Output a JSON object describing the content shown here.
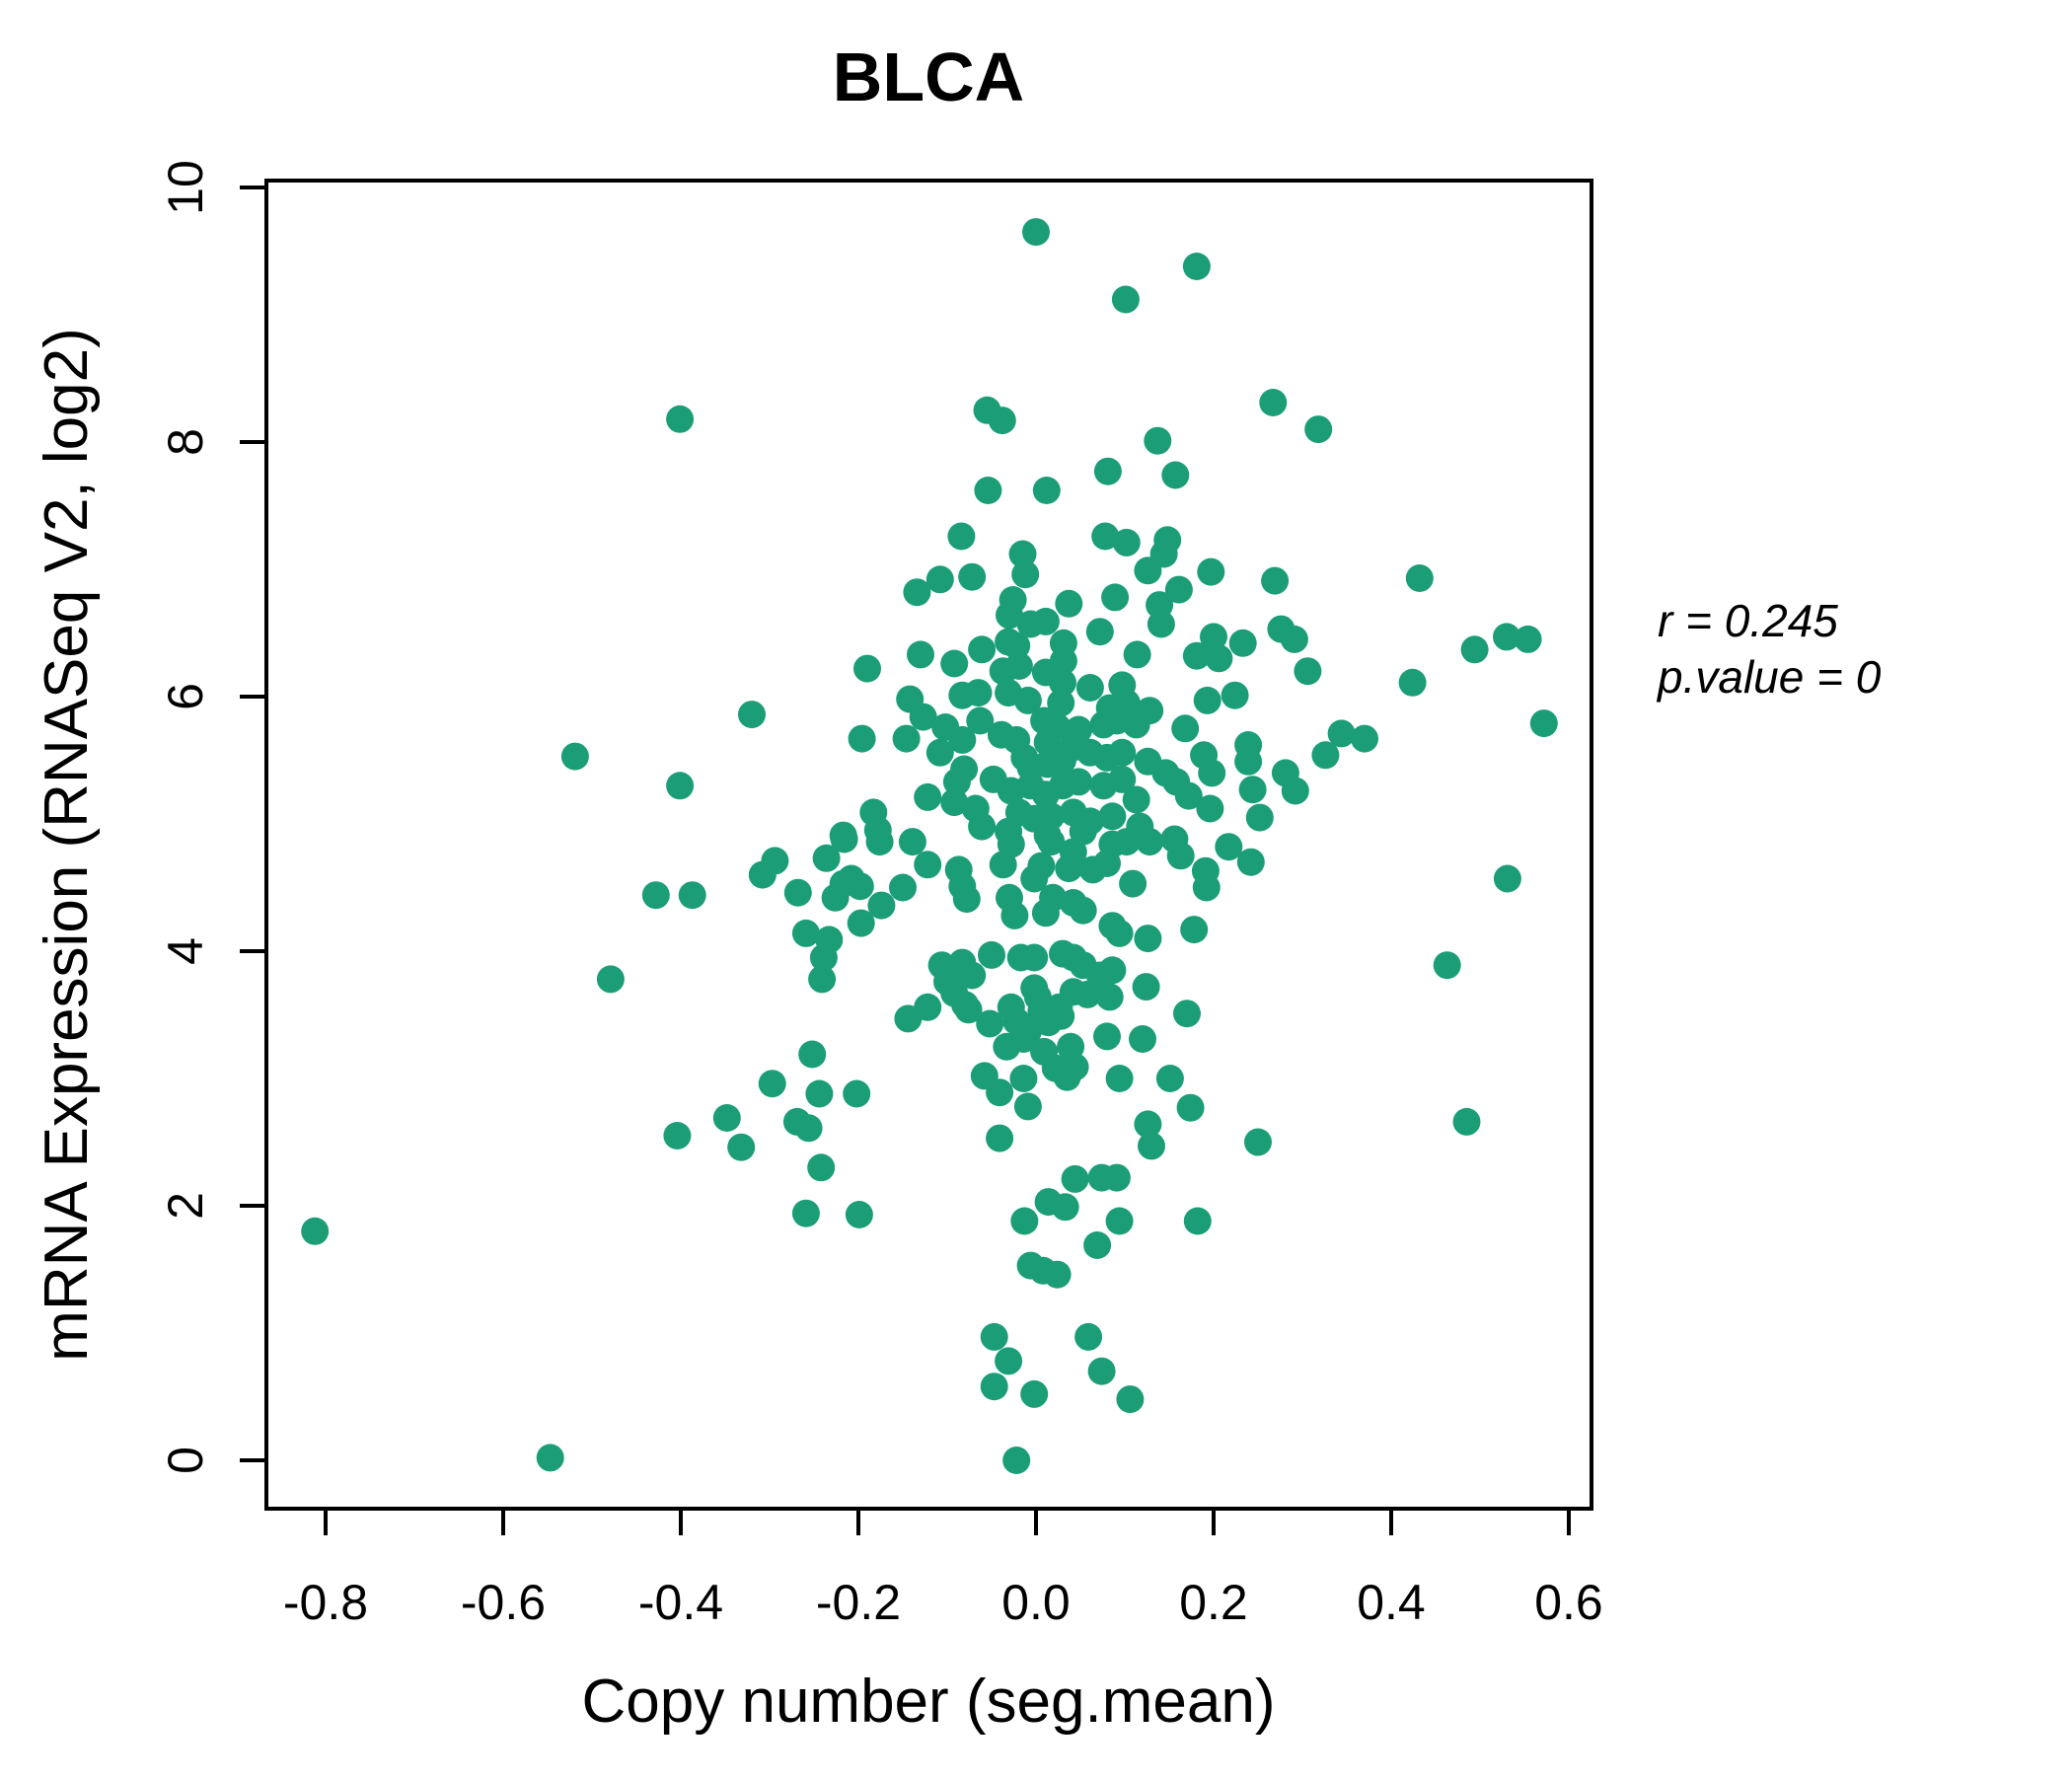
{
  "title": "BLCA",
  "title_color": "#1B9E77",
  "annotation": {
    "line1": "r = 0.245",
    "line2": "p.value = 0"
  },
  "chart_data": {
    "type": "scatter",
    "title": "BLCA",
    "xlabel": "Copy number (seg.mean)",
    "ylabel": "mRNA Expression (RNASeq V2, log2)",
    "xlim": [
      -0.87,
      0.63
    ],
    "ylim": [
      -0.38,
      10.05
    ],
    "x_tick_labels": [
      "-0.8",
      "-0.6",
      "-0.4",
      "-0.2",
      "0.0",
      "0.2",
      "0.4",
      "0.6"
    ],
    "y_tick_labels": [
      "0",
      "2",
      "4",
      "6",
      "8",
      "10"
    ],
    "grid": false,
    "legend": "none",
    "point_color": "#1B9E77",
    "correlation_r": 0.245,
    "p_value": 0,
    "points": [
      [
        -0.401,
        8.18
      ],
      [
        0.0,
        9.65
      ],
      [
        0.101,
        9.12
      ],
      [
        -0.055,
        8.25
      ],
      [
        -0.038,
        8.17
      ],
      [
        0.081,
        7.77
      ],
      [
        -0.054,
        7.62
      ],
      [
        0.012,
        7.62
      ],
      [
        -0.084,
        7.26
      ],
      [
        -0.015,
        7.12
      ],
      [
        0.078,
        7.26
      ],
      [
        0.102,
        7.21
      ],
      [
        -0.012,
        6.96
      ],
      [
        -0.108,
        6.92
      ],
      [
        -0.072,
        6.94
      ],
      [
        -0.134,
        6.82
      ],
      [
        -0.026,
        6.76
      ],
      [
        0.037,
        6.73
      ],
      [
        0.089,
        6.78
      ],
      [
        0.126,
        6.99
      ],
      [
        0.181,
        9.38
      ],
      [
        0.267,
        8.31
      ],
      [
        0.318,
        8.1
      ],
      [
        0.137,
        8.01
      ],
      [
        0.157,
        7.74
      ],
      [
        0.148,
        7.23
      ],
      [
        0.144,
        7.12
      ],
      [
        0.197,
        6.98
      ],
      [
        0.269,
        6.91
      ],
      [
        0.432,
        6.93
      ],
      [
        0.161,
        6.84
      ],
      [
        0.139,
        6.72
      ],
      [
        -0.519,
        5.53
      ],
      [
        -0.401,
        5.3
      ],
      [
        -0.428,
        4.44
      ],
      [
        -0.387,
        4.44
      ],
      [
        -0.479,
        3.78
      ],
      [
        0.141,
        6.57
      ],
      [
        0.2,
        6.47
      ],
      [
        0.233,
        6.42
      ],
      [
        0.181,
        6.32
      ],
      [
        0.206,
        6.3
      ],
      [
        0.276,
        6.53
      ],
      [
        0.291,
        6.45
      ],
      [
        0.306,
        6.2
      ],
      [
        0.494,
        6.37
      ],
      [
        0.53,
        6.47
      ],
      [
        0.554,
        6.45
      ],
      [
        0.424,
        6.11
      ],
      [
        0.572,
        5.79
      ],
      [
        0.193,
        5.97
      ],
      [
        0.224,
        6.01
      ],
      [
        0.168,
        5.75
      ],
      [
        0.344,
        5.71
      ],
      [
        0.37,
        5.67
      ],
      [
        0.326,
        5.54
      ],
      [
        0.239,
        5.62
      ],
      [
        0.239,
        5.49
      ],
      [
        0.189,
        5.54
      ],
      [
        0.198,
        5.4
      ],
      [
        0.281,
        5.4
      ],
      [
        0.292,
        5.26
      ],
      [
        0.244,
        5.27
      ],
      [
        0.146,
        5.4
      ],
      [
        0.158,
        5.33
      ],
      [
        0.172,
        5.22
      ],
      [
        0.196,
        5.12
      ],
      [
        0.252,
        5.05
      ],
      [
        0.156,
        4.88
      ],
      [
        0.163,
        4.75
      ],
      [
        0.217,
        4.82
      ],
      [
        0.242,
        4.7
      ],
      [
        0.191,
        4.63
      ],
      [
        0.192,
        4.5
      ],
      [
        0.531,
        4.57
      ],
      [
        0.178,
        4.17
      ],
      [
        0.463,
        3.89
      ],
      [
        0.17,
        3.51
      ],
      [
        -0.404,
        2.55
      ],
      [
        -0.812,
        1.8
      ],
      [
        -0.547,
        0.02
      ],
      [
        -0.297,
        2.96
      ],
      [
        -0.244,
        2.88
      ],
      [
        -0.202,
        2.88
      ],
      [
        -0.348,
        2.69
      ],
      [
        -0.269,
        2.66
      ],
      [
        -0.256,
        2.61
      ],
      [
        -0.332,
        2.46
      ],
      [
        -0.242,
        2.3
      ],
      [
        -0.259,
        1.94
      ],
      [
        -0.199,
        1.93
      ],
      [
        -0.058,
        3.02
      ],
      [
        -0.041,
        2.89
      ],
      [
        -0.014,
        3.0
      ],
      [
        0.022,
        3.08
      ],
      [
        0.035,
        3.01
      ],
      [
        0.044,
        3.09
      ],
      [
        -0.009,
        2.78
      ],
      [
        0.094,
        3.0
      ],
      [
        -0.041,
        2.53
      ],
      [
        0.126,
        2.64
      ],
      [
        0.13,
        2.47
      ],
      [
        0.044,
        2.21
      ],
      [
        0.074,
        2.22
      ],
      [
        0.091,
        2.22
      ],
      [
        0.014,
        2.03
      ],
      [
        0.033,
        1.99
      ],
      [
        -0.013,
        1.88
      ],
      [
        0.069,
        1.69
      ],
      [
        0.094,
        1.88
      ],
      [
        -0.006,
        1.53
      ],
      [
        0.008,
        1.49
      ],
      [
        0.024,
        1.46
      ],
      [
        -0.047,
        0.97
      ],
      [
        0.059,
        0.97
      ],
      [
        -0.031,
        0.78
      ],
      [
        -0.047,
        0.58
      ],
      [
        -0.002,
        0.52
      ],
      [
        0.074,
        0.7
      ],
      [
        0.106,
        0.48
      ],
      [
        -0.022,
        0.0
      ],
      [
        0.151,
        3.0
      ],
      [
        0.174,
        2.77
      ],
      [
        0.25,
        2.5
      ],
      [
        0.485,
        2.66
      ],
      [
        0.182,
        1.88
      ],
      [
        -0.19,
        6.22
      ],
      [
        -0.13,
        6.33
      ],
      [
        -0.32,
        5.86
      ],
      [
        -0.142,
        5.98
      ],
      [
        -0.196,
        5.67
      ],
      [
        -0.146,
        5.67
      ],
      [
        -0.127,
        5.84
      ],
      [
        -0.183,
        5.09
      ],
      [
        -0.178,
        4.95
      ],
      [
        -0.217,
        4.91
      ],
      [
        -0.03,
        6.64
      ],
      [
        -0.006,
        6.57
      ],
      [
        0.011,
        6.59
      ],
      [
        0.072,
        6.51
      ],
      [
        -0.061,
        6.37
      ],
      [
        -0.031,
        6.43
      ],
      [
        -0.022,
        6.4
      ],
      [
        0.031,
        6.42
      ],
      [
        0.031,
        6.28
      ],
      [
        0.114,
        6.33
      ],
      [
        -0.092,
        6.26
      ],
      [
        -0.037,
        6.2
      ],
      [
        -0.019,
        6.24
      ],
      [
        0.011,
        6.19
      ],
      [
        0.03,
        6.11
      ],
      [
        0.061,
        6.07
      ],
      [
        0.097,
        6.09
      ],
      [
        0.102,
        5.95
      ],
      [
        -0.083,
        6.01
      ],
      [
        -0.065,
        6.03
      ],
      [
        -0.031,
        6.03
      ],
      [
        -0.009,
        5.97
      ],
      [
        0.028,
        5.95
      ],
      [
        0.083,
        5.91
      ],
      [
        0.128,
        5.89
      ],
      [
        -0.063,
        5.81
      ],
      [
        -0.102,
        5.76
      ],
      [
        -0.083,
        5.66
      ],
      [
        -0.108,
        5.56
      ],
      [
        -0.039,
        5.7
      ],
      [
        -0.022,
        5.66
      ],
      [
        0.009,
        5.81
      ],
      [
        0.024,
        5.76
      ],
      [
        0.013,
        5.64
      ],
      [
        0.048,
        5.74
      ],
      [
        0.042,
        5.6
      ],
      [
        0.076,
        5.78
      ],
      [
        0.091,
        5.81
      ],
      [
        0.113,
        5.78
      ],
      [
        0.061,
        5.56
      ],
      [
        0.08,
        5.52
      ],
      [
        0.097,
        5.56
      ],
      [
        0.126,
        5.49
      ],
      [
        -0.081,
        5.43
      ],
      [
        -0.089,
        5.33
      ],
      [
        -0.048,
        5.35
      ],
      [
        -0.013,
        5.52
      ],
      [
        -0.006,
        5.44
      ],
      [
        0.013,
        5.47
      ],
      [
        0.03,
        5.5
      ],
      [
        -0.006,
        5.3
      ],
      [
        0.011,
        5.23
      ],
      [
        0.03,
        5.3
      ],
      [
        0.048,
        5.33
      ],
      [
        0.076,
        5.3
      ],
      [
        0.097,
        5.35
      ],
      [
        0.113,
        5.19
      ],
      [
        -0.092,
        5.17
      ],
      [
        -0.068,
        5.12
      ],
      [
        -0.028,
        5.26
      ],
      [
        -0.019,
        5.09
      ],
      [
        -0.002,
        5.04
      ],
      [
        0.017,
        5.06
      ],
      [
        0.042,
        5.09
      ],
      [
        0.061,
        5.02
      ],
      [
        0.086,
        5.06
      ],
      [
        -0.061,
        4.98
      ],
      [
        -0.031,
        4.94
      ],
      [
        0.013,
        4.91
      ],
      [
        0.053,
        4.94
      ],
      [
        0.117,
        4.98
      ],
      [
        -0.122,
        5.21
      ],
      [
        -0.216,
        4.88
      ],
      [
        -0.176,
        4.86
      ],
      [
        -0.139,
        4.86
      ],
      [
        -0.236,
        4.73
      ],
      [
        -0.294,
        4.71
      ],
      [
        -0.308,
        4.6
      ],
      [
        -0.122,
        4.68
      ],
      [
        -0.208,
        4.57
      ],
      [
        -0.217,
        4.53
      ],
      [
        -0.198,
        4.51
      ],
      [
        -0.268,
        4.46
      ],
      [
        -0.226,
        4.42
      ],
      [
        -0.15,
        4.5
      ],
      [
        -0.174,
        4.36
      ],
      [
        -0.197,
        4.22
      ],
      [
        -0.259,
        4.14
      ],
      [
        -0.233,
        4.09
      ],
      [
        -0.239,
        3.95
      ],
      [
        -0.241,
        3.78
      ],
      [
        -0.122,
        3.56
      ],
      [
        -0.144,
        3.47
      ],
      [
        -0.252,
        3.19
      ],
      [
        -0.028,
        4.84
      ],
      [
        0.017,
        4.86
      ],
      [
        0.042,
        4.78
      ],
      [
        0.086,
        4.84
      ],
      [
        0.102,
        4.86
      ],
      [
        0.128,
        4.86
      ],
      [
        -0.087,
        4.64
      ],
      [
        -0.083,
        4.51
      ],
      [
        -0.078,
        4.41
      ],
      [
        -0.037,
        4.68
      ],
      [
        -0.002,
        4.57
      ],
      [
        0.006,
        4.67
      ],
      [
        0.037,
        4.65
      ],
      [
        0.064,
        4.64
      ],
      [
        0.08,
        4.69
      ],
      [
        0.109,
        4.53
      ],
      [
        -0.03,
        4.42
      ],
      [
        -0.024,
        4.28
      ],
      [
        0.011,
        4.3
      ],
      [
        0.019,
        4.42
      ],
      [
        0.042,
        4.38
      ],
      [
        0.053,
        4.32
      ],
      [
        0.086,
        4.2
      ],
      [
        0.094,
        4.14
      ],
      [
        0.126,
        4.1
      ],
      [
        -0.05,
        3.97
      ],
      [
        -0.017,
        3.95
      ],
      [
        -0.002,
        3.95
      ],
      [
        0.03,
        3.98
      ],
      [
        0.042,
        3.95
      ],
      [
        0.053,
        3.89
      ],
      [
        -0.106,
        3.89
      ],
      [
        -0.083,
        3.91
      ],
      [
        -0.072,
        3.81
      ],
      [
        0.072,
        3.81
      ],
      [
        0.086,
        3.85
      ],
      [
        0.124,
        3.72
      ],
      [
        -0.1,
        3.76
      ],
      [
        -0.092,
        3.67
      ],
      [
        -0.08,
        3.58
      ],
      [
        -0.002,
        3.71
      ],
      [
        0.042,
        3.68
      ],
      [
        0.058,
        3.66
      ],
      [
        0.083,
        3.64
      ],
      [
        0.002,
        3.64
      ],
      [
        0.006,
        3.53
      ],
      [
        -0.076,
        3.54
      ],
      [
        -0.028,
        3.56
      ],
      [
        -0.022,
        3.45
      ],
      [
        0.026,
        3.56
      ],
      [
        -0.052,
        3.43
      ],
      [
        -0.009,
        3.37
      ],
      [
        0.014,
        3.44
      ],
      [
        0.028,
        3.49
      ],
      [
        0.12,
        3.31
      ],
      [
        0.08,
        3.33
      ],
      [
        -0.033,
        3.25
      ],
      [
        -0.014,
        3.31
      ],
      [
        0.039,
        3.25
      ],
      [
        0.009,
        3.21
      ]
    ]
  }
}
